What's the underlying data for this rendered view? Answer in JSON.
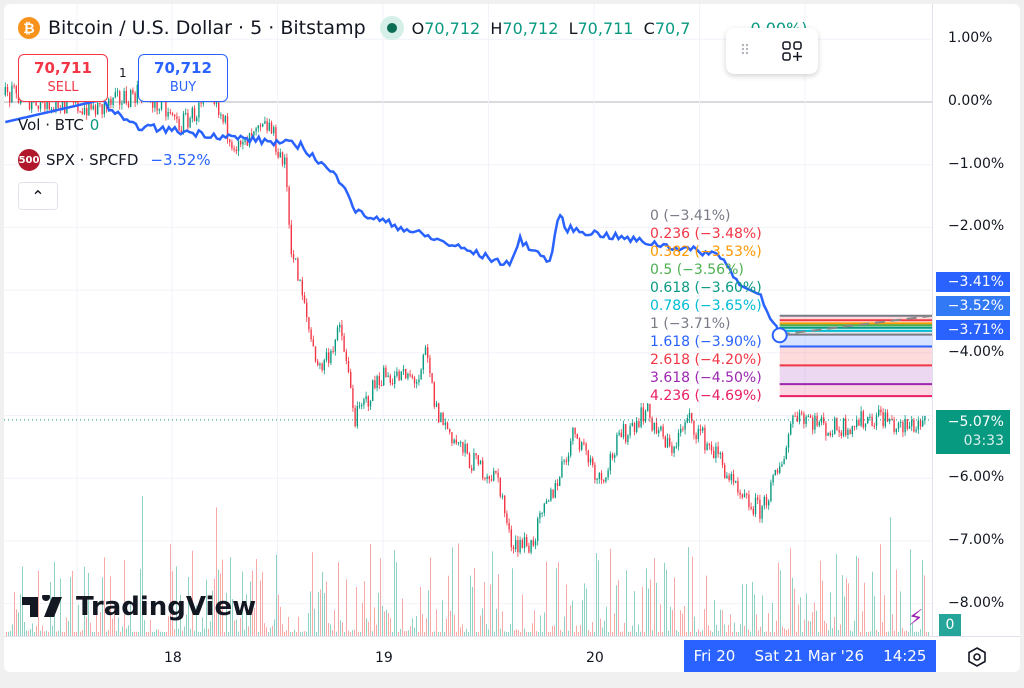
{
  "header": {
    "symbol_icon": "bitcoin-icon",
    "title": "Bitcoin / U.S. Dollar · 5 · Bitstamp",
    "o_label": "O",
    "o": "70,712",
    "h_label": "H",
    "h": "70,712",
    "l_label": "L",
    "l": "70,711",
    "c_label": "C",
    "c": "70,7",
    "change": "0.00%)"
  },
  "trade": {
    "sell_price": "70,711",
    "sell_label": "SELL",
    "qty": "1",
    "buy_price": "70,712",
    "buy_label": "BUY"
  },
  "legend": {
    "vol": "Vol · BTC",
    "vol_value": "0",
    "spx_badge": "500",
    "spx": "SPX · SPCFD",
    "spx_value": "−3.52%"
  },
  "y_axis": [
    "1.00%",
    "0.00%",
    "−1.00%",
    "−2.00%",
    "−4.00%",
    "−6.00%",
    "−7.00%",
    "−8.00%"
  ],
  "tags": {
    "spx_high": "−3.41%",
    "spx_last": "−3.52%",
    "spx_low": "−3.71%",
    "btc_last": "−5.07%",
    "countdown": "03:33",
    "vol_badge": "0"
  },
  "x_axis": [
    "18",
    "19",
    "20"
  ],
  "crosshair": {
    "day": "Fri 20",
    "date": "Sat 21 Mar '26",
    "time": "14:25"
  },
  "fib_labels": [
    {
      "text": "0 (−3.41%)",
      "color": "#787b86"
    },
    {
      "text": "0.236 (−3.48%)",
      "color": "#f23645"
    },
    {
      "text": "0.382 (−3.53%)",
      "color": "#ff9800"
    },
    {
      "text": "0.5 (−3.56%)",
      "color": "#4caf50"
    },
    {
      "text": "0.618 (−3.60%)",
      "color": "#089981"
    },
    {
      "text": "0.786 (−3.65%)",
      "color": "#00bcd4"
    },
    {
      "text": "1 (−3.71%)",
      "color": "#787b86"
    },
    {
      "text": "1.618 (−3.90%)",
      "color": "#2962ff"
    },
    {
      "text": "2.618 (−4.20%)",
      "color": "#f23645"
    },
    {
      "text": "3.618 (−4.50%)",
      "color": "#9c27b0"
    },
    {
      "text": "4.236 (−4.69%)",
      "color": "#e91e63"
    }
  ],
  "brand": "TradingView",
  "colors": {
    "up": "#089981",
    "down": "#f23645",
    "spx_line": "#2962ff",
    "accent": "#2962ff"
  },
  "chart_data": {
    "type": "line",
    "x_unit": "day of March 2026",
    "y_unit": "percent change",
    "ylim": [
      -8.4,
      1.4
    ],
    "xlim": [
      17.19,
      21.6
    ],
    "grid": true,
    "series": [
      {
        "name": "Bitcoin / U.S. Dollar",
        "style": "candles",
        "points": [
          [
            17.21,
            0.11
          ],
          [
            17.66,
            -0.13
          ],
          [
            17.85,
            0.19
          ],
          [
            18.04,
            -0.37
          ],
          [
            18.18,
            0.03
          ],
          [
            18.32,
            -0.77
          ],
          [
            18.46,
            -0.37
          ],
          [
            18.54,
            -1.08
          ],
          [
            18.56,
            -2.2
          ],
          [
            18.65,
            -3.64
          ],
          [
            18.7,
            -4.27
          ],
          [
            18.8,
            -3.64
          ],
          [
            18.87,
            -5.07
          ],
          [
            18.99,
            -4.35
          ],
          [
            19.18,
            -4.43
          ],
          [
            19.2,
            -3.96
          ],
          [
            19.25,
            -4.91
          ],
          [
            19.34,
            -5.39
          ],
          [
            19.41,
            -5.71
          ],
          [
            19.55,
            -6.03
          ],
          [
            19.6,
            -6.99
          ],
          [
            19.7,
            -7.07
          ],
          [
            19.79,
            -6.35
          ],
          [
            19.91,
            -5.23
          ],
          [
            20.03,
            -6.03
          ],
          [
            20.12,
            -5.39
          ],
          [
            20.24,
            -4.91
          ],
          [
            20.36,
            -5.55
          ],
          [
            20.45,
            -5.07
          ],
          [
            20.6,
            -5.71
          ],
          [
            20.69,
            -6.35
          ],
          [
            20.79,
            -6.51
          ],
          [
            20.88,
            -5.87
          ],
          [
            20.95,
            -4.91
          ],
          [
            21.12,
            -5.23
          ],
          [
            21.36,
            -4.99
          ],
          [
            21.45,
            -5.23
          ],
          [
            21.57,
            -5.07
          ]
        ]
      },
      {
        "name": "SPX · SPCFD",
        "style": "line",
        "points": [
          [
            17.21,
            -0.32
          ],
          [
            17.66,
            0.03
          ],
          [
            17.8,
            -0.37
          ],
          [
            18.61,
            -0.69
          ],
          [
            18.82,
            -1.32
          ],
          [
            18.87,
            -1.75
          ],
          [
            19.6,
            -2.6
          ],
          [
            19.65,
            -2.2
          ],
          [
            19.79,
            -2.55
          ],
          [
            19.84,
            -1.75
          ],
          [
            19.86,
            -2.01
          ],
          [
            20.6,
            -2.44
          ],
          [
            20.69,
            -2.92
          ],
          [
            20.79,
            -3.08
          ],
          [
            20.88,
            -3.72
          ]
        ]
      }
    ],
    "fib_extension": {
      "levels": [
        0,
        0.236,
        0.382,
        0.5,
        0.618,
        0.786,
        1,
        1.618,
        2.618,
        3.618,
        4.236
      ],
      "values": [
        -3.41,
        -3.48,
        -3.53,
        -3.56,
        -3.6,
        -3.65,
        -3.71,
        -3.9,
        -4.2,
        -4.5,
        -4.69
      ],
      "colors": [
        "#787b86",
        "#f23645",
        "#ff9800",
        "#4caf50",
        "#089981",
        "#00bcd4",
        "#787b86",
        "#2962ff",
        "#f23645",
        "#9c27b0",
        "#e91e63"
      ],
      "start_day": 20.88
    }
  }
}
